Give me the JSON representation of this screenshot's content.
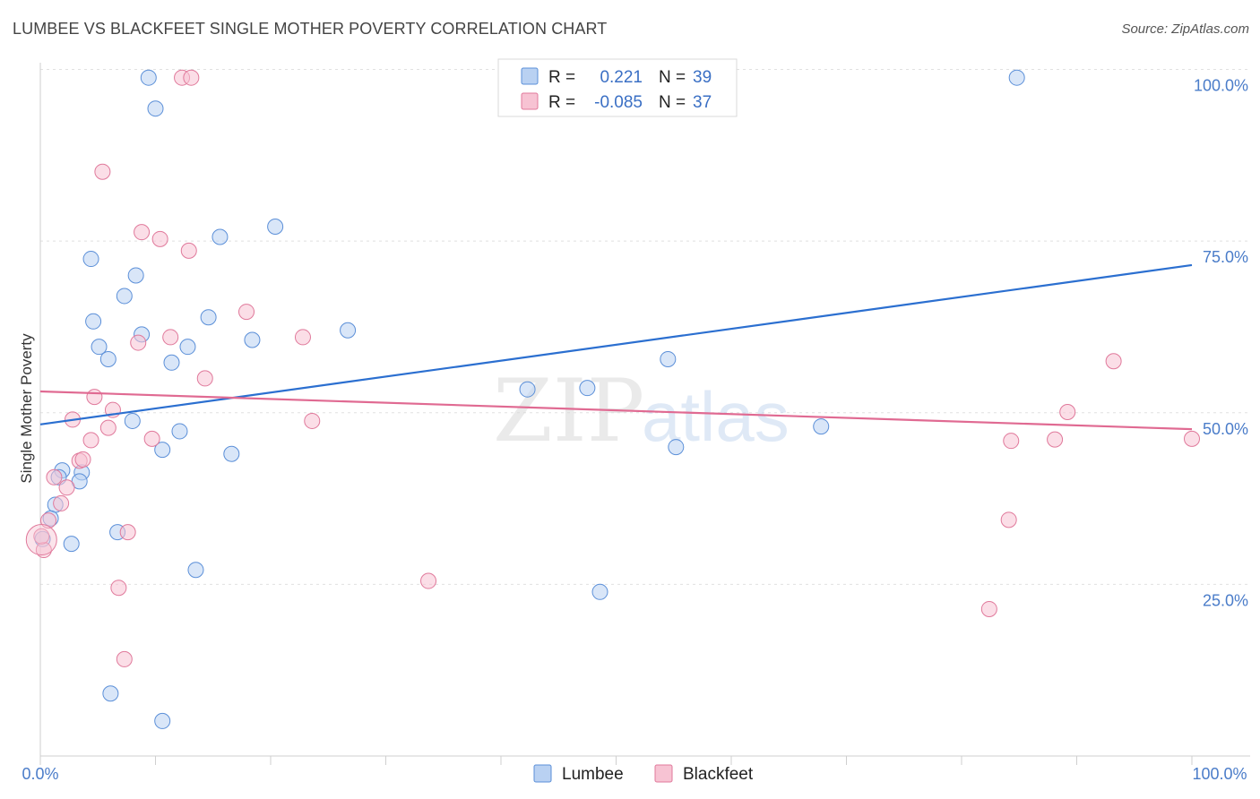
{
  "title": "LUMBEE VS BLACKFEET SINGLE MOTHER POVERTY CORRELATION CHART",
  "source": "Source: ZipAtlas.com",
  "watermark": {
    "part1": "ZIP",
    "part2": "atlas"
  },
  "colors": {
    "lumbee": "#5b8fd8",
    "lumbee_fill": "#b9d1f2",
    "blackfeet": "#e0799b",
    "blackfeet_fill": "#f7c3d3",
    "tick": "#4a7cc9"
  },
  "legend": {
    "rows": [
      {
        "r_label": "R =",
        "r_value": "0.221",
        "n_label": "N =",
        "n_value": "39"
      },
      {
        "r_label": "R =",
        "r_value": "-0.085",
        "n_label": "N =",
        "n_value": "37"
      }
    ]
  },
  "chart_data": {
    "type": "scatter",
    "title": "LUMBEE VS BLACKFEET SINGLE MOTHER POVERTY CORRELATION CHART",
    "ylabel": "Single Mother Poverty",
    "xlabel": "",
    "xlim": [
      0,
      100
    ],
    "ylim": [
      0,
      103
    ],
    "x_tick_labels": [
      "0.0%",
      "100.0%"
    ],
    "y_tick_labels": [
      "25.0%",
      "50.0%",
      "75.0%",
      "100.0%"
    ],
    "y_ticks": [
      25,
      50,
      75,
      100
    ],
    "legend_position": "bottom",
    "series": [
      {
        "name": "Lumbee",
        "r": 0.221,
        "n": 39,
        "trend": [
          [
            0,
            48.3
          ],
          [
            100,
            71.5
          ]
        ],
        "points": [
          [
            9.4,
            98.8
          ],
          [
            10.0,
            94.3
          ],
          [
            84.8,
            98.8
          ],
          [
            20.4,
            77.1
          ],
          [
            15.6,
            75.6
          ],
          [
            4.4,
            72.4
          ],
          [
            8.3,
            70.0
          ],
          [
            7.3,
            67.0
          ],
          [
            14.6,
            63.9
          ],
          [
            4.6,
            63.3
          ],
          [
            26.7,
            62.0
          ],
          [
            8.8,
            61.4
          ],
          [
            18.4,
            60.6
          ],
          [
            5.1,
            59.6
          ],
          [
            12.8,
            59.6
          ],
          [
            5.9,
            57.8
          ],
          [
            11.4,
            57.3
          ],
          [
            54.5,
            57.8
          ],
          [
            42.3,
            53.4
          ],
          [
            47.5,
            53.6
          ],
          [
            8.0,
            48.8
          ],
          [
            67.8,
            48.0
          ],
          [
            12.1,
            47.3
          ],
          [
            10.6,
            44.6
          ],
          [
            16.6,
            44.0
          ],
          [
            55.2,
            45.0
          ],
          [
            1.9,
            41.6
          ],
          [
            1.6,
            40.6
          ],
          [
            3.6,
            41.3
          ],
          [
            3.4,
            40.0
          ],
          [
            1.3,
            36.6
          ],
          [
            0.9,
            34.6
          ],
          [
            6.7,
            32.6
          ],
          [
            2.7,
            30.9
          ],
          [
            0.2,
            31.6
          ],
          [
            13.5,
            27.1
          ],
          [
            48.6,
            23.9
          ],
          [
            6.1,
            9.1
          ],
          [
            10.6,
            5.1
          ]
        ]
      },
      {
        "name": "Blackfeet",
        "r": -0.085,
        "n": 37,
        "trend": [
          [
            0,
            53.1
          ],
          [
            100,
            47.6
          ]
        ],
        "points": [
          [
            12.3,
            98.8
          ],
          [
            13.1,
            98.8
          ],
          [
            5.4,
            85.1
          ],
          [
            8.8,
            76.3
          ],
          [
            10.4,
            75.3
          ],
          [
            12.9,
            73.6
          ],
          [
            17.9,
            64.7
          ],
          [
            22.8,
            61.0
          ],
          [
            11.3,
            61.0
          ],
          [
            8.5,
            60.2
          ],
          [
            14.3,
            55.0
          ],
          [
            93.2,
            57.5
          ],
          [
            4.7,
            52.3
          ],
          [
            6.3,
            50.4
          ],
          [
            2.8,
            49.0
          ],
          [
            5.9,
            47.8
          ],
          [
            23.6,
            48.8
          ],
          [
            89.2,
            50.1
          ],
          [
            9.7,
            46.2
          ],
          [
            4.4,
            46.0
          ],
          [
            84.3,
            45.9
          ],
          [
            88.1,
            46.1
          ],
          [
            100.0,
            46.2
          ],
          [
            3.4,
            43.0
          ],
          [
            3.7,
            43.2
          ],
          [
            1.2,
            40.6
          ],
          [
            2.3,
            39.1
          ],
          [
            1.8,
            36.8
          ],
          [
            0.7,
            34.3
          ],
          [
            7.6,
            32.6
          ],
          [
            0.3,
            30.0
          ],
          [
            33.7,
            25.5
          ],
          [
            6.8,
            24.5
          ],
          [
            84.1,
            34.4
          ],
          [
            82.4,
            21.4
          ],
          [
            7.3,
            14.1
          ],
          [
            0.1,
            32.0
          ]
        ]
      }
    ]
  }
}
